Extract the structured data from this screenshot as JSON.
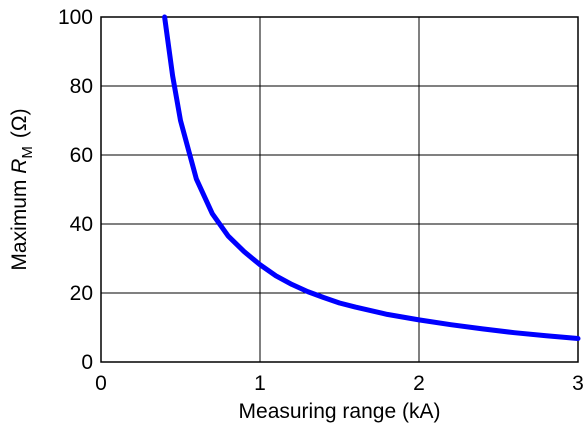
{
  "chart_data": {
    "type": "line",
    "title": "",
    "xlabel": "Measuring range (kA)",
    "ylabel_prefix": "Maximum ",
    "ylabel_symbol": "R",
    "ylabel_subscript": "M",
    "ylabel_unit": "(Ω)",
    "xlim": [
      0,
      3
    ],
    "ylim": [
      0,
      100
    ],
    "x_ticks": [
      "0",
      "1",
      "2",
      "3"
    ],
    "y_ticks": [
      "0",
      "20",
      "40",
      "60",
      "80",
      "100"
    ],
    "grid": true,
    "series": [
      {
        "color": "#0000ff",
        "points": [
          [
            0.4,
            100
          ],
          [
            0.45,
            83.0
          ],
          [
            0.5,
            70.0
          ],
          [
            0.6,
            53.0
          ],
          [
            0.7,
            43.0
          ],
          [
            0.8,
            36.5
          ],
          [
            0.9,
            32.0
          ],
          [
            1.0,
            28.2
          ],
          [
            1.1,
            25.0
          ],
          [
            1.2,
            22.5
          ],
          [
            1.3,
            20.4
          ],
          [
            1.4,
            18.7
          ],
          [
            1.5,
            17.1
          ],
          [
            1.6,
            15.9
          ],
          [
            1.8,
            13.8
          ],
          [
            2.0,
            12.2
          ],
          [
            2.2,
            10.8
          ],
          [
            2.4,
            9.6
          ],
          [
            2.6,
            8.5
          ],
          [
            2.8,
            7.6
          ],
          [
            3.0,
            6.8
          ]
        ]
      }
    ]
  }
}
